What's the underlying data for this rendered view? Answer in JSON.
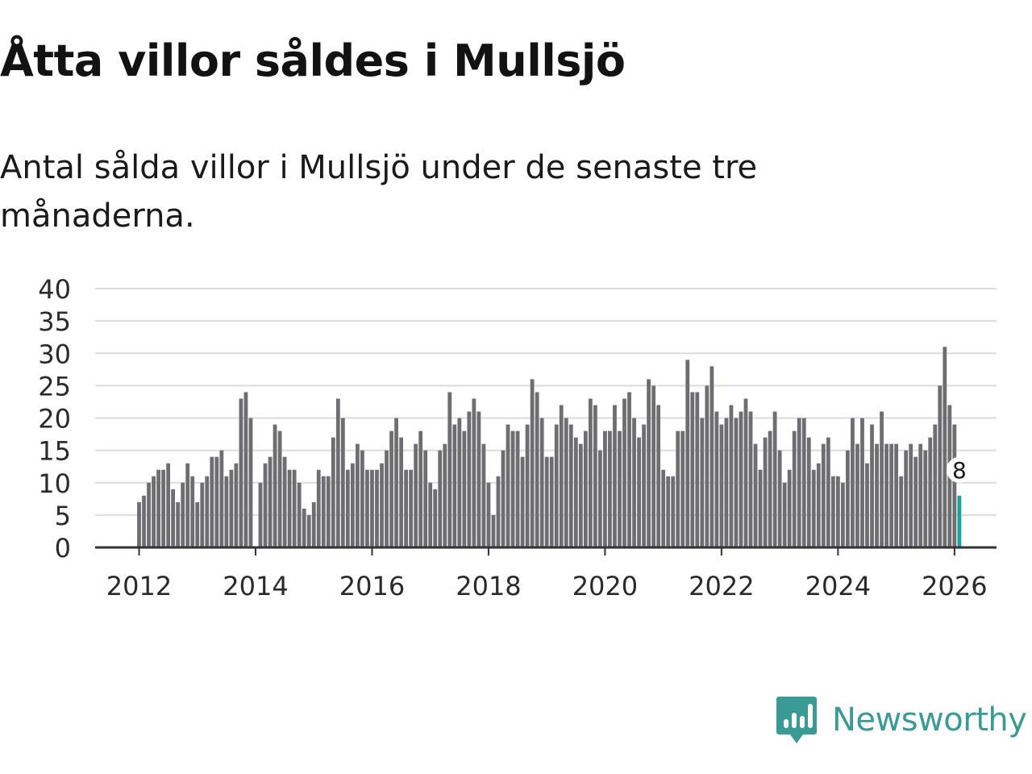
{
  "title": "Åtta villor såldes i Mullsjö",
  "subtitle": "Antal sålda villor i Mullsjö under de senaste tre månaderna.",
  "brand": {
    "name": "Newsworthy",
    "color": "#3a9a94"
  },
  "colors": {
    "bar": "#6e6d72",
    "highlight": "#1aa19a",
    "grid": "#dcdcdc",
    "axis": "#333333"
  },
  "chart_data": {
    "type": "bar",
    "title": "Åtta villor såldes i Mullsjö",
    "subtitle": "Antal sålda villor i Mullsjö under de senaste tre månaderna.",
    "xlabel": "",
    "ylabel": "",
    "ylim": [
      0,
      40
    ],
    "y_ticks": [
      0,
      5,
      10,
      15,
      20,
      25,
      30,
      35,
      40
    ],
    "x_ticks": [
      "2012",
      "2014",
      "2016",
      "2018",
      "2020",
      "2022",
      "2024",
      "2026"
    ],
    "x_start": "2012-01",
    "frequency": "monthly",
    "gap_months": [
      "2014-01"
    ],
    "values": [
      7,
      8,
      10,
      11,
      12,
      12,
      13,
      9,
      7,
      10,
      13,
      11,
      7,
      10,
      11,
      14,
      14,
      15,
      11,
      12,
      13,
      23,
      24,
      20,
      0,
      10,
      13,
      14,
      19,
      18,
      14,
      12,
      12,
      10,
      6,
      5,
      7,
      12,
      11,
      11,
      17,
      23,
      20,
      12,
      13,
      16,
      15,
      12,
      12,
      12,
      13,
      15,
      18,
      20,
      17,
      12,
      12,
      16,
      18,
      15,
      10,
      9,
      15,
      16,
      24,
      19,
      20,
      18,
      21,
      23,
      21,
      16,
      10,
      5,
      11,
      15,
      19,
      18,
      18,
      14,
      19,
      26,
      24,
      20,
      14,
      14,
      19,
      22,
      20,
      19,
      17,
      16,
      18,
      23,
      22,
      15,
      18,
      18,
      22,
      18,
      23,
      24,
      20,
      17,
      19,
      26,
      25,
      22,
      12,
      11,
      11,
      18,
      18,
      29,
      24,
      24,
      20,
      25,
      28,
      21,
      19,
      20,
      22,
      20,
      21,
      23,
      21,
      16,
      12,
      17,
      18,
      21,
      15,
      10,
      12,
      18,
      20,
      20,
      17,
      12,
      13,
      16,
      17,
      11,
      11,
      10,
      15,
      20,
      16,
      20,
      13,
      19,
      16,
      21,
      16,
      16,
      16,
      11,
      15,
      16,
      14,
      16,
      15,
      17,
      19,
      25,
      31,
      22,
      19,
      8
    ],
    "highlight": {
      "index": 169,
      "label": "8",
      "value": 8
    }
  }
}
